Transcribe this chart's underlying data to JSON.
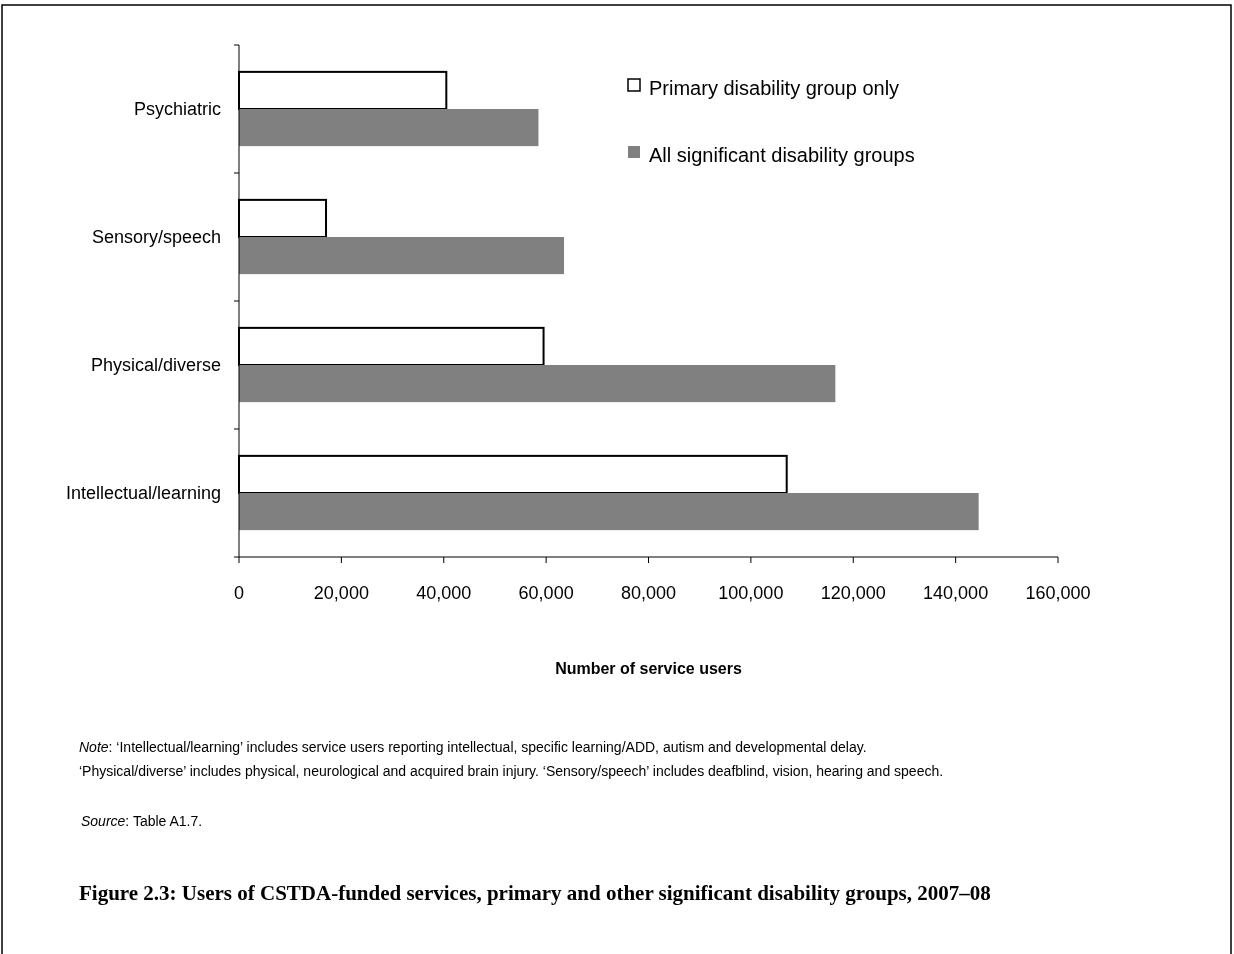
{
  "chart_data": {
    "type": "bar",
    "orientation": "horizontal",
    "title": "Figure 2.3: Users of CSTDA-funded services, primary and other significant disability groups, 2007–08",
    "xlabel": "Number of service users",
    "categories": [
      "Psychiatric",
      "Sensory/speech",
      "Physical/diverse",
      "Intellectual/learning"
    ],
    "series": [
      {
        "name": "Primary disability group only",
        "color": "#ffffff",
        "values": [
          40500,
          17000,
          59500,
          107000
        ]
      },
      {
        "name": "All significant disability groups",
        "color": "#808080",
        "values": [
          58500,
          63500,
          116500,
          144500
        ]
      }
    ],
    "xlim": [
      0,
      160000
    ],
    "xticks": [
      {
        "value": 0,
        "label": "0"
      },
      {
        "value": 20000,
        "label": "20,000"
      },
      {
        "value": 40000,
        "label": "40,000"
      },
      {
        "value": 60000,
        "label": "60,000"
      },
      {
        "value": 80000,
        "label": "80,000"
      },
      {
        "value": 100000,
        "label": "100,000"
      },
      {
        "value": 120000,
        "label": "120,000"
      },
      {
        "value": 140000,
        "label": "140,000"
      },
      {
        "value": 160000,
        "label": "160,000"
      }
    ],
    "legend": "top right",
    "grid": false,
    "annotations": [
      "Note: ‘Intellectual/learning’ includes service users reporting intellectual, specific learning/ADD, autism and developmental delay.",
      "‘Physical/diverse’ includes physical, neurological and acquired brain injury. ‘Sensory/speech’ includes deafblind, vision, hearing and speech.",
      "Source: Table A1.7."
    ]
  }
}
